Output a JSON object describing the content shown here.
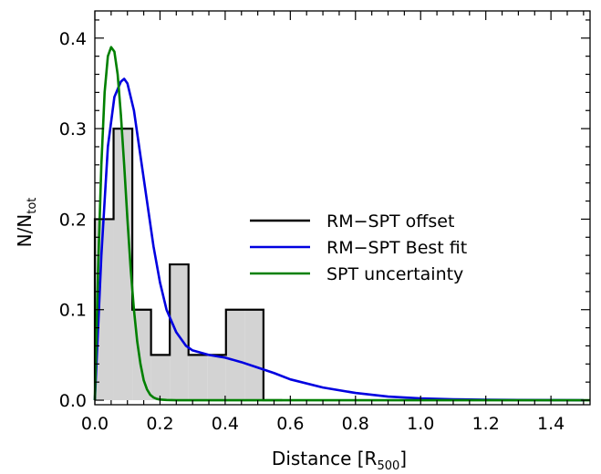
{
  "chart_data": {
    "type": "line",
    "xlabel": {
      "main": "Distance [R",
      "sub": "500",
      "close": "]"
    },
    "ylabel": {
      "main": "N/N",
      "sub": "tot"
    },
    "xlim": [
      0.0,
      1.52
    ],
    "ylim": [
      -0.005,
      0.43
    ],
    "x_ticks": [
      "0.0",
      "0.2",
      "0.4",
      "0.6",
      "0.8",
      "1.0",
      "1.2",
      "1.4"
    ],
    "x_tick_values": [
      0.0,
      0.2,
      0.4,
      0.6,
      0.8,
      1.0,
      1.2,
      1.4
    ],
    "y_ticks": [
      "0.0",
      "0.1",
      "0.2",
      "0.3",
      "0.4"
    ],
    "y_tick_values": [
      0.0,
      0.1,
      0.2,
      0.3,
      0.4
    ],
    "legend_position": "center-right",
    "series": [
      {
        "name": "RM−SPT offset",
        "kind": "histogram",
        "color": "#000000",
        "fill": "#d3d3d3",
        "bin_edges": [
          0.0,
          0.0575,
          0.115,
          0.1725,
          0.23,
          0.2875,
          0.345,
          0.4025,
          0.46,
          0.5175,
          0.575
        ],
        "values": [
          0.2,
          0.3,
          0.1,
          0.05,
          0.15,
          0.05,
          0.05,
          0.1,
          0.1,
          0.0
        ]
      },
      {
        "name": "RM−SPT Best fit",
        "kind": "line",
        "color": "#0000e0",
        "x": [
          0.0,
          0.02,
          0.04,
          0.06,
          0.08,
          0.09,
          0.1,
          0.12,
          0.14,
          0.16,
          0.18,
          0.2,
          0.22,
          0.25,
          0.28,
          0.3,
          0.35,
          0.4,
          0.45,
          0.5,
          0.55,
          0.6,
          0.7,
          0.8,
          0.9,
          1.0,
          1.1,
          1.2,
          1.3,
          1.4,
          1.5
        ],
        "y": [
          0.0,
          0.16,
          0.28,
          0.335,
          0.352,
          0.355,
          0.35,
          0.32,
          0.27,
          0.22,
          0.17,
          0.13,
          0.1,
          0.075,
          0.06,
          0.055,
          0.05,
          0.047,
          0.042,
          0.036,
          0.03,
          0.023,
          0.014,
          0.008,
          0.004,
          0.002,
          0.001,
          0.0005,
          0.0002,
          0.0001,
          0.0
        ]
      },
      {
        "name": "SPT uncertainty",
        "kind": "line",
        "color": "#008000",
        "x": [
          0.0,
          0.01,
          0.02,
          0.03,
          0.04,
          0.05,
          0.06,
          0.07,
          0.08,
          0.09,
          0.1,
          0.11,
          0.12,
          0.13,
          0.14,
          0.15,
          0.16,
          0.17,
          0.18,
          0.19,
          0.2,
          0.22,
          0.25,
          0.3,
          1.52
        ],
        "y": [
          0.0,
          0.145,
          0.26,
          0.34,
          0.38,
          0.39,
          0.385,
          0.36,
          0.315,
          0.26,
          0.2,
          0.145,
          0.1,
          0.065,
          0.04,
          0.022,
          0.012,
          0.006,
          0.003,
          0.0015,
          0.0007,
          0.0002,
          0.0,
          0.0,
          0.0
        ]
      }
    ]
  }
}
